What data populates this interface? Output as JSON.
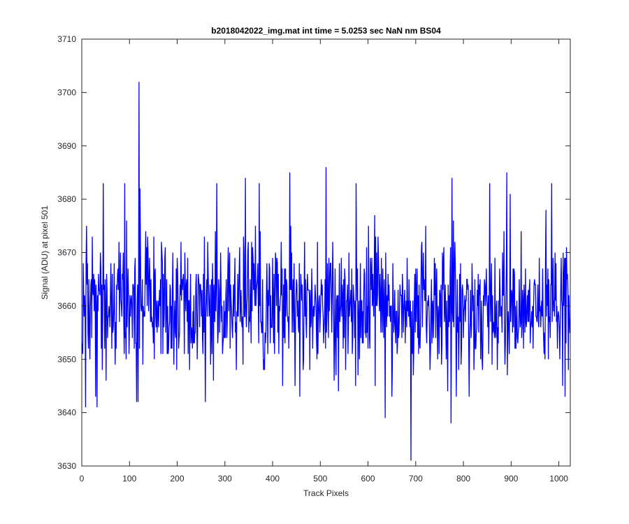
{
  "chart_data": {
    "type": "line",
    "title": "b2018042022_img.mat int time = 5.0253 sec  NaN nm BS04",
    "xlabel": "Track Pixels",
    "ylabel": "Signal (ADU) at pixel 501",
    "xlim": [
      0,
      1024
    ],
    "ylim": [
      3630,
      3710
    ],
    "xticks": [
      0,
      100,
      200,
      300,
      400,
      500,
      600,
      700,
      800,
      900,
      1000
    ],
    "yticks": [
      3630,
      3640,
      3650,
      3660,
      3670,
      3680,
      3690,
      3700,
      3710
    ],
    "grid": false,
    "legend": "none",
    "series": [
      {
        "color": "#0000ff",
        "x_start": 1,
        "x_step": 1,
        "noise_mean": 3660,
        "noise_sigma": 6,
        "spikes": [
          {
            "x": 120,
            "y": 3702
          },
          {
            "x": 122,
            "y": 3682
          },
          {
            "x": 512,
            "y": 3686
          },
          {
            "x": 436,
            "y": 3685
          },
          {
            "x": 891,
            "y": 3685
          },
          {
            "x": 343,
            "y": 3684
          },
          {
            "x": 776,
            "y": 3684
          },
          {
            "x": 45,
            "y": 3683
          },
          {
            "x": 90,
            "y": 3683
          },
          {
            "x": 283,
            "y": 3683
          },
          {
            "x": 372,
            "y": 3683
          },
          {
            "x": 575,
            "y": 3683
          },
          {
            "x": 855,
            "y": 3683
          },
          {
            "x": 985,
            "y": 3683
          },
          {
            "x": 690,
            "y": 3631
          },
          {
            "x": 636,
            "y": 3639
          },
          {
            "x": 774,
            "y": 3638
          },
          {
            "x": 8,
            "y": 3641
          },
          {
            "x": 32,
            "y": 3641
          },
          {
            "x": 259,
            "y": 3642
          },
          {
            "x": 115,
            "y": 3642
          },
          {
            "x": 118,
            "y": 3642
          },
          {
            "x": 457,
            "y": 3643
          }
        ]
      }
    ]
  }
}
